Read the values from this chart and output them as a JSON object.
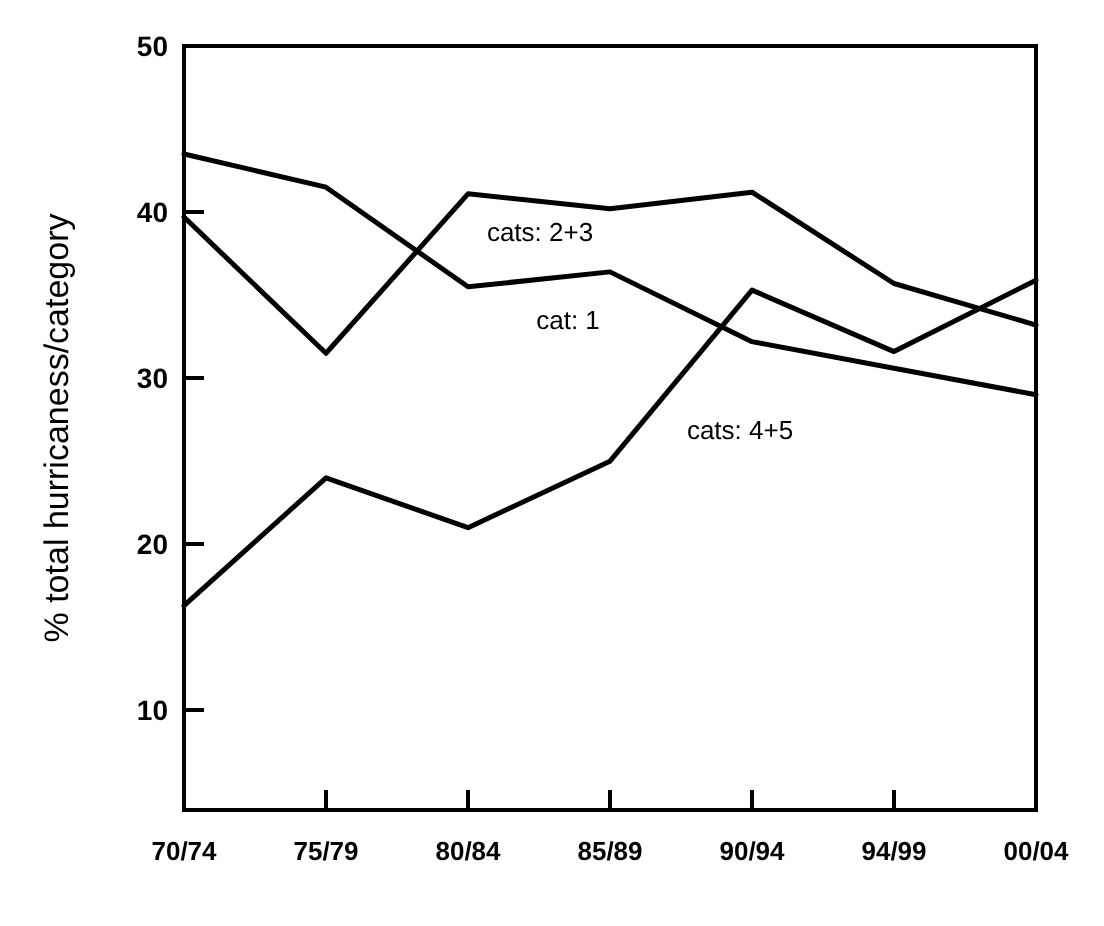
{
  "chart_data": {
    "type": "line",
    "ylabel": "% total hurricaness/category",
    "categories": [
      "70/74",
      "75/79",
      "80/84",
      "85/89",
      "90/94",
      "94/99",
      "00/04"
    ],
    "series": [
      {
        "name": "cat: 1",
        "color": "#000000",
        "values": [
          43.5,
          41.5,
          35.5,
          36.4,
          32.2,
          30.6,
          29.0
        ]
      },
      {
        "name": "cats: 2+3",
        "color": "#000000",
        "values": [
          39.7,
          31.5,
          41.1,
          40.2,
          41.2,
          35.7,
          33.2
        ]
      },
      {
        "name": "cats: 4+5",
        "color": "#000000",
        "values": [
          16.3,
          24.0,
          21.0,
          25.0,
          35.3,
          31.6,
          35.9
        ]
      }
    ],
    "ylim": [
      4,
      50
    ],
    "yticks": [
      10,
      20,
      30,
      40,
      50
    ],
    "grid": false,
    "legend": false,
    "marker": "none",
    "line_style": "solid"
  }
}
